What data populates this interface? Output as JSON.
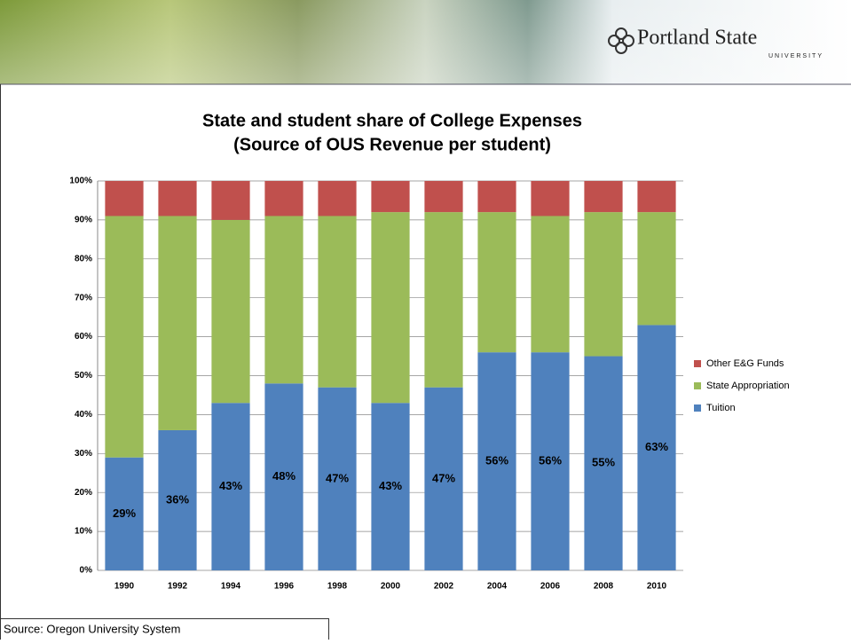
{
  "header": {
    "brand": "Portland State",
    "sub": "UNIVERSITY"
  },
  "footer": {
    "source": "Source: Oregon University System"
  },
  "chart_data": {
    "type": "stacked_bar",
    "title": "State and student share of College Expenses",
    "subtitle": "(Source of OUS Revenue per student)",
    "categories": [
      "1990",
      "1992",
      "1994",
      "1996",
      "1998",
      "2000",
      "2002",
      "2004",
      "2006",
      "2008",
      "2010"
    ],
    "series": [
      {
        "name": "Tuition",
        "color": "#4f81bd",
        "values": [
          29,
          36,
          43,
          48,
          47,
          43,
          47,
          56,
          56,
          55,
          63
        ],
        "value_labels": [
          "29%",
          "36%",
          "43%",
          "48%",
          "47%",
          "43%",
          "47%",
          "56%",
          "56%",
          "55%",
          "63%"
        ]
      },
      {
        "name": "State Appropriation",
        "color": "#9bbb59",
        "values": [
          62,
          55,
          47,
          43,
          44,
          49,
          45,
          36,
          35,
          37,
          29
        ]
      },
      {
        "name": "Other E&G Funds",
        "color": "#c0504d",
        "values": [
          9,
          9,
          10,
          9,
          9,
          8,
          8,
          8,
          9,
          8,
          8
        ]
      }
    ],
    "ylim": [
      0,
      100
    ],
    "yticks": [
      {
        "value": 0,
        "label": "0%"
      },
      {
        "value": 10,
        "label": "10%"
      },
      {
        "value": 20,
        "label": "20%"
      },
      {
        "value": 30,
        "label": "30%"
      },
      {
        "value": 40,
        "label": "40%"
      },
      {
        "value": 50,
        "label": "50%"
      },
      {
        "value": 60,
        "label": "60%"
      },
      {
        "value": 70,
        "label": "70%"
      },
      {
        "value": 80,
        "label": "80%"
      },
      {
        "value": 90,
        "label": "90%"
      },
      {
        "value": 100,
        "label": "100%"
      }
    ],
    "grid": true
  }
}
